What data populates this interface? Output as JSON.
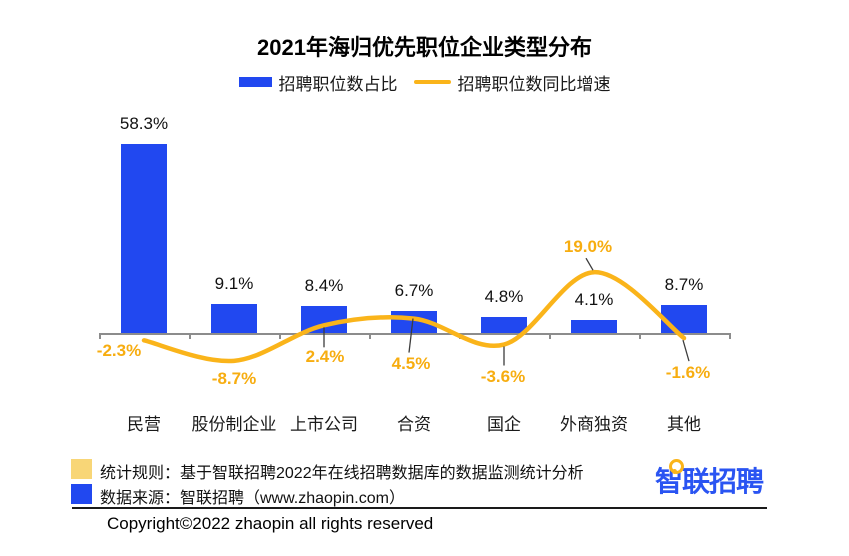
{
  "title": "2021年海归优先职位企业类型分布",
  "legend": {
    "bar_label": "招聘职位数占比",
    "line_label": "招聘职位数同比增速"
  },
  "colors": {
    "bar_blue": "#2148f0",
    "line_gold": "#fab41a",
    "label_gold": "#f7ad10",
    "note_yellow": "#f8d677",
    "logo_blue": "#2a54f2",
    "axis_gray": "#8c8c8c",
    "leader_dark": "#3c3c3c"
  },
  "chart_data": {
    "type": "bar+line",
    "categories": [
      "民营",
      "股份制企业",
      "上市公司",
      "合资",
      "国企",
      "外商独资",
      "其他"
    ],
    "series": [
      {
        "name": "招聘职位数占比",
        "type": "bar",
        "unit": "%",
        "values": [
          58.3,
          9.1,
          8.4,
          6.7,
          4.8,
          4.1,
          8.7
        ]
      },
      {
        "name": "招聘职位数同比增速",
        "type": "line",
        "unit": "%",
        "values": [
          -2.3,
          -8.7,
          2.4,
          4.5,
          -3.6,
          19.0,
          -1.6
        ]
      }
    ],
    "bar_labels": [
      "58.3%",
      "9.1%",
      "8.4%",
      "6.7%",
      "4.8%",
      "4.1%",
      "8.7%"
    ],
    "line_labels": [
      "-2.3%",
      "-8.7%",
      "2.4%",
      "4.5%",
      "-3.6%",
      "19.0%",
      "-1.6%"
    ],
    "grid": false,
    "legend_position": "top",
    "value_axis_visible": false
  },
  "footer": {
    "note1": "统计规则：基于智联招聘2022年在线招聘数据库的数据监测统计分析",
    "note2": "数据来源：智联招聘（www.zhaopin.com）",
    "copyright": "Copyright©2022 zhaopin all rights reserved",
    "logo_text": "智联招聘"
  }
}
